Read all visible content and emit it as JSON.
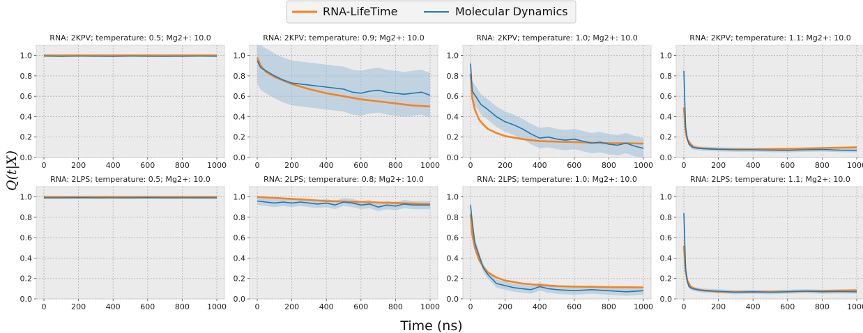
{
  "legend": [
    {
      "label": "RNA-LifeTime",
      "color": "#f5821f"
    },
    {
      "label": "Molecular Dynamics",
      "color": "#1f77b4"
    }
  ],
  "xlabel": "Time (ns)",
  "ylabel": "Q(t|X)",
  "colors": {
    "panel_bg": "#ebebeb",
    "grid": "#b0b0b0",
    "lifetime": "#f5821f",
    "md": "#1f77b4",
    "band": "#9fbfd9"
  },
  "chart_data": [
    {
      "type": "line",
      "title": "RNA: 2KPV; temperature: 0.5; Mg2+: 10.0",
      "xlim": [
        0,
        1000
      ],
      "ylim": [
        0,
        1.1
      ],
      "xticks": [
        "0",
        "200",
        "400",
        "600",
        "800",
        "1000"
      ],
      "yticks": [
        "0.0",
        "0.2",
        "0.4",
        "0.6",
        "0.8",
        "1.0"
      ],
      "series": [
        {
          "name": "RNA-LifeTime",
          "x": [
            0,
            100,
            200,
            400,
            600,
            800,
            1000
          ],
          "y": [
            1.0,
            1.0,
            1.0,
            1.0,
            1.0,
            1.0,
            1.0
          ]
        },
        {
          "name": "Molecular Dynamics",
          "x": [
            0,
            100,
            200,
            300,
            400,
            500,
            600,
            700,
            800,
            900,
            1000
          ],
          "y": [
            0.995,
            0.992,
            0.994,
            0.993,
            0.992,
            0.994,
            0.993,
            0.992,
            0.993,
            0.994,
            0.993
          ],
          "band": 0.005
        }
      ]
    },
    {
      "type": "line",
      "title": "RNA: 2KPV; temperature: 0.9; Mg2+: 10.0",
      "xlim": [
        0,
        1000
      ],
      "ylim": [
        0,
        1.1
      ],
      "xticks": [
        "0",
        "200",
        "400",
        "600",
        "800",
        "1000"
      ],
      "yticks": [
        "0.0",
        "0.2",
        "0.4",
        "0.6",
        "0.8",
        "1.0"
      ],
      "series": [
        {
          "name": "RNA-LifeTime",
          "x": [
            0,
            20,
            50,
            100,
            200,
            300,
            400,
            500,
            600,
            700,
            800,
            900,
            1000
          ],
          "y": [
            0.98,
            0.9,
            0.84,
            0.79,
            0.72,
            0.67,
            0.63,
            0.6,
            0.57,
            0.55,
            0.53,
            0.51,
            0.5
          ]
        },
        {
          "name": "Molecular Dynamics",
          "x": [
            0,
            20,
            50,
            100,
            150,
            200,
            250,
            300,
            350,
            400,
            450,
            500,
            550,
            600,
            650,
            700,
            750,
            800,
            850,
            900,
            950,
            1000
          ],
          "y": [
            0.95,
            0.88,
            0.85,
            0.8,
            0.76,
            0.73,
            0.72,
            0.71,
            0.7,
            0.69,
            0.68,
            0.67,
            0.64,
            0.63,
            0.65,
            0.66,
            0.64,
            0.63,
            0.62,
            0.63,
            0.64,
            0.61
          ],
          "band": 0.22
        }
      ]
    },
    {
      "type": "line",
      "title": "RNA: 2KPV; temperature: 1.0; Mg2+: 10.0",
      "xlim": [
        0,
        1000
      ],
      "ylim": [
        0,
        1.1
      ],
      "xticks": [
        "0",
        "200",
        "400",
        "600",
        "800",
        "1000"
      ],
      "yticks": [
        "0.0",
        "0.2",
        "0.4",
        "0.6",
        "0.8",
        "1.0"
      ],
      "series": [
        {
          "name": "RNA-LifeTime",
          "x": [
            0,
            10,
            25,
            50,
            75,
            100,
            150,
            200,
            300,
            400,
            500,
            600,
            700,
            800,
            900,
            1000
          ],
          "y": [
            0.82,
            0.58,
            0.47,
            0.37,
            0.32,
            0.28,
            0.24,
            0.21,
            0.18,
            0.16,
            0.155,
            0.15,
            0.145,
            0.14,
            0.14,
            0.135
          ]
        },
        {
          "name": "Molecular Dynamics",
          "x": [
            0,
            10,
            30,
            60,
            100,
            150,
            200,
            250,
            300,
            350,
            400,
            450,
            500,
            550,
            600,
            650,
            700,
            750,
            800,
            850,
            900,
            950,
            1000
          ],
          "y": [
            0.92,
            0.65,
            0.6,
            0.52,
            0.47,
            0.4,
            0.35,
            0.32,
            0.28,
            0.23,
            0.19,
            0.2,
            0.18,
            0.17,
            0.18,
            0.16,
            0.14,
            0.15,
            0.13,
            0.12,
            0.14,
            0.11,
            0.09
          ],
          "band": 0.1
        }
      ]
    },
    {
      "type": "line",
      "title": "RNA: 2KPV; temperature: 1.1; Mg2+: 10.0",
      "xlim": [
        0,
        1000
      ],
      "ylim": [
        0,
        1.1
      ],
      "xticks": [
        "0",
        "200",
        "400",
        "600",
        "800",
        "1000"
      ],
      "yticks": [
        "0.0",
        "0.2",
        "0.4",
        "0.6",
        "0.8",
        "1.0"
      ],
      "series": [
        {
          "name": "RNA-LifeTime",
          "x": [
            0,
            10,
            20,
            40,
            60,
            100,
            200,
            400,
            600,
            800,
            1000
          ],
          "y": [
            0.49,
            0.25,
            0.18,
            0.13,
            0.1,
            0.09,
            0.082,
            0.08,
            0.085,
            0.092,
            0.1
          ]
        },
        {
          "name": "Molecular Dynamics",
          "x": [
            0,
            10,
            20,
            30,
            50,
            80,
            120,
            200,
            300,
            400,
            500,
            600,
            700,
            800,
            900,
            1000
          ],
          "y": [
            0.85,
            0.3,
            0.18,
            0.13,
            0.1,
            0.09,
            0.085,
            0.08,
            0.075,
            0.075,
            0.072,
            0.07,
            0.075,
            0.078,
            0.072,
            0.07
          ],
          "band": 0.02
        }
      ]
    },
    {
      "type": "line",
      "title": "RNA: 2LPS; temperature: 0.5; Mg2+: 10.0",
      "xlim": [
        0,
        1000
      ],
      "ylim": [
        0,
        1.1
      ],
      "xticks": [
        "0",
        "200",
        "400",
        "600",
        "800",
        "1000"
      ],
      "yticks": [
        "0.0",
        "0.2",
        "0.4",
        "0.6",
        "0.8",
        "1.0"
      ],
      "series": [
        {
          "name": "RNA-LifeTime",
          "x": [
            0,
            200,
            400,
            600,
            800,
            1000
          ],
          "y": [
            1.0,
            1.0,
            1.0,
            1.0,
            1.0,
            1.0
          ]
        },
        {
          "name": "Molecular Dynamics",
          "x": [
            0,
            100,
            200,
            300,
            400,
            500,
            600,
            700,
            800,
            900,
            1000
          ],
          "y": [
            0.99,
            0.99,
            0.992,
            0.99,
            0.991,
            0.99,
            0.992,
            0.99,
            0.991,
            0.99,
            0.99
          ],
          "band": 0.006
        }
      ]
    },
    {
      "type": "line",
      "title": "RNA: 2LPS; temperature: 0.8; Mg2+: 10.0",
      "xlim": [
        0,
        1000
      ],
      "ylim": [
        0,
        1.1
      ],
      "xticks": [
        "0",
        "200",
        "400",
        "600",
        "800",
        "1000"
      ],
      "yticks": [
        "0.0",
        "0.2",
        "0.4",
        "0.6",
        "0.8",
        "1.0"
      ],
      "series": [
        {
          "name": "RNA-LifeTime",
          "x": [
            0,
            100,
            200,
            300,
            400,
            500,
            600,
            700,
            800,
            900,
            1000
          ],
          "y": [
            1.0,
            0.99,
            0.98,
            0.97,
            0.96,
            0.955,
            0.95,
            0.945,
            0.94,
            0.935,
            0.93
          ]
        },
        {
          "name": "Molecular Dynamics",
          "x": [
            0,
            50,
            100,
            150,
            200,
            250,
            300,
            350,
            400,
            450,
            500,
            550,
            600,
            650,
            700,
            750,
            800,
            850,
            900,
            950,
            1000
          ],
          "y": [
            0.96,
            0.95,
            0.94,
            0.95,
            0.94,
            0.95,
            0.94,
            0.93,
            0.94,
            0.92,
            0.95,
            0.94,
            0.92,
            0.93,
            0.9,
            0.92,
            0.91,
            0.93,
            0.92,
            0.92,
            0.92
          ],
          "band": 0.04
        }
      ]
    },
    {
      "type": "line",
      "title": "RNA: 2LPS; temperature: 1.0; Mg2+: 10.0",
      "xlim": [
        0,
        1000
      ],
      "ylim": [
        0,
        1.1
      ],
      "xticks": [
        "0",
        "200",
        "400",
        "600",
        "800",
        "1000"
      ],
      "yticks": [
        "0.0",
        "0.2",
        "0.4",
        "0.6",
        "0.8",
        "1.0"
      ],
      "series": [
        {
          "name": "RNA-LifeTime",
          "x": [
            0,
            10,
            25,
            50,
            75,
            100,
            150,
            200,
            300,
            400,
            500,
            600,
            700,
            800,
            900,
            1000
          ],
          "y": [
            0.83,
            0.63,
            0.5,
            0.38,
            0.31,
            0.26,
            0.21,
            0.18,
            0.15,
            0.135,
            0.125,
            0.12,
            0.118,
            0.115,
            0.114,
            0.113
          ]
        },
        {
          "name": "Molecular Dynamics",
          "x": [
            0,
            10,
            25,
            50,
            75,
            100,
            150,
            200,
            250,
            300,
            350,
            400,
            450,
            500,
            600,
            700,
            800,
            900,
            1000
          ],
          "y": [
            0.92,
            0.75,
            0.55,
            0.42,
            0.3,
            0.24,
            0.15,
            0.13,
            0.11,
            0.1,
            0.09,
            0.12,
            0.1,
            0.09,
            0.08,
            0.09,
            0.08,
            0.07,
            0.08
          ],
          "band": 0.04
        }
      ]
    },
    {
      "type": "line",
      "title": "RNA: 2LPS; temperature: 1.1; Mg2+: 10.0",
      "xlim": [
        0,
        1000
      ],
      "ylim": [
        0,
        1.1
      ],
      "xticks": [
        "0",
        "200",
        "400",
        "600",
        "800",
        "1000"
      ],
      "yticks": [
        "0.0",
        "0.2",
        "0.4",
        "0.6",
        "0.8",
        "1.0"
      ],
      "series": [
        {
          "name": "RNA-LifeTime",
          "x": [
            0,
            10,
            20,
            40,
            60,
            100,
            200,
            400,
            600,
            800,
            1000
          ],
          "y": [
            0.52,
            0.27,
            0.18,
            0.12,
            0.1,
            0.085,
            0.07,
            0.068,
            0.072,
            0.078,
            0.085
          ]
        },
        {
          "name": "Molecular Dynamics",
          "x": [
            0,
            10,
            20,
            30,
            50,
            80,
            120,
            200,
            300,
            400,
            500,
            600,
            700,
            800,
            900,
            1000
          ],
          "y": [
            0.84,
            0.3,
            0.17,
            0.12,
            0.1,
            0.09,
            0.08,
            0.075,
            0.065,
            0.07,
            0.065,
            0.07,
            0.075,
            0.07,
            0.072,
            0.07
          ],
          "band": 0.02
        }
      ]
    }
  ]
}
